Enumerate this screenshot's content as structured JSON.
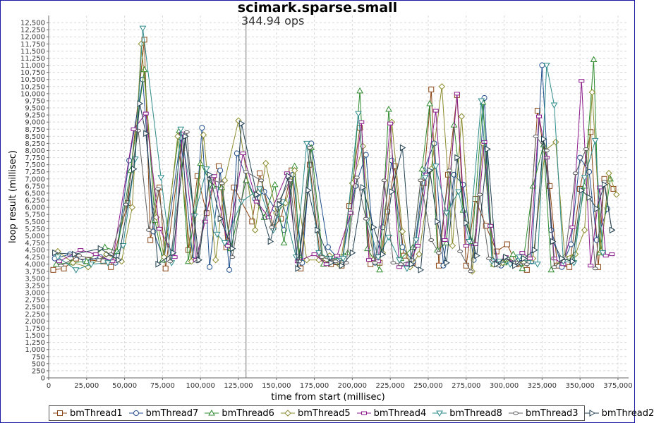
{
  "chart_data": {
    "type": "line",
    "title": "scimark.sparse.small",
    "annotation": "344.94 ops",
    "marker_x": 130000,
    "xlabel": "time from start (millisec)",
    "ylabel": "loop result (millisec)",
    "xlim": [
      0,
      382000
    ],
    "ylim": [
      0,
      12750
    ],
    "x_ticks": [
      0,
      25000,
      50000,
      75000,
      100000,
      125000,
      150000,
      175000,
      200000,
      225000,
      250000,
      275000,
      300000,
      325000,
      350000,
      375000
    ],
    "x_tick_labels": [
      "0",
      "25,000",
      "50,000",
      "75,000",
      "100,000",
      "125,000",
      "150,000",
      "175,000",
      "200,000",
      "225,000",
      "250,000",
      "275,000",
      "300,000",
      "325,000",
      "350,000",
      "375,000"
    ],
    "y_ticks": [
      0,
      250,
      500,
      750,
      1000,
      1250,
      1500,
      1750,
      2000,
      2250,
      2500,
      2750,
      3000,
      3250,
      3500,
      3750,
      4000,
      4250,
      4500,
      4750,
      5000,
      5250,
      5500,
      5750,
      6000,
      6250,
      6500,
      6750,
      7000,
      7250,
      7500,
      7750,
      8000,
      8250,
      8500,
      8750,
      9000,
      9250,
      9500,
      9750,
      10000,
      10250,
      10500,
      10750,
      11000,
      11250,
      11500,
      11750,
      12000,
      12250,
      12500
    ],
    "y_tick_labels": [
      "0",
      "250",
      "500",
      "750",
      "1,000",
      "1,250",
      "1,500",
      "1,750",
      "2,000",
      "2,250",
      "2,500",
      "2,750",
      "3,000",
      "3,250",
      "3,500",
      "3,750",
      "4,000",
      "4,250",
      "4,500",
      "4,750",
      "5,000",
      "5,250",
      "5,500",
      "5,750",
      "6,000",
      "6,250",
      "6,500",
      "6,750",
      "7,000",
      "7,250",
      "7,500",
      "7,750",
      "8,000",
      "8,250",
      "8,500",
      "8,750",
      "9,000",
      "9,250",
      "9,500",
      "9,750",
      "10,000",
      "10,250",
      "10,500",
      "10,750",
      "11,000",
      "11,250",
      "11,500",
      "11,750",
      "12,000",
      "12,250",
      "12,500"
    ],
    "grid": true,
    "legend_position": "bottom",
    "series": [
      {
        "name": "bmThread1",
        "color": "#8b4513",
        "marker": "square",
        "x": [
          3000,
          10000,
          18000,
          26000,
          36000,
          41000,
          52000,
          63000,
          67000,
          73000,
          77000,
          88000,
          92000,
          98000,
          104000,
          112000,
          117000,
          122000,
          134000,
          139000,
          148000,
          153000,
          160000,
          166000,
          172000,
          179000,
          186000,
          193000,
          198000,
          205000,
          212000,
          218000,
          223000,
          228000,
          234000,
          240000,
          247000,
          252000,
          257000,
          263000,
          269000,
          275000,
          281000,
          288000,
          295000,
          302000,
          308000,
          315000,
          322000,
          330000,
          335000,
          343000,
          350000,
          357000,
          362000,
          366000,
          372000
        ],
        "y": [
          3800,
          3850,
          4200,
          4150,
          4100,
          3900,
          6150,
          11900,
          4850,
          6700,
          3850,
          8550,
          4500,
          7100,
          5800,
          7450,
          4600,
          6700,
          5500,
          7200,
          5300,
          5600,
          7300,
          3850,
          7500,
          4200,
          4000,
          3950,
          6050,
          8800,
          4000,
          4050,
          5850,
          7450,
          4300,
          4050,
          6850,
          10150,
          3950,
          7150,
          9950,
          3950,
          6300,
          5350,
          4450,
          4700,
          4000,
          3800,
          9400,
          6750,
          3950,
          3900,
          6650,
          8650,
          3900,
          7000,
          6650
        ]
      },
      {
        "name": "bmThread7",
        "color": "#1f4e8c",
        "marker": "circle",
        "x": [
          4000,
          14000,
          24000,
          34000,
          44000,
          53000,
          62000,
          69000,
          76000,
          87000,
          95000,
          101000,
          106000,
          113000,
          119000,
          124000,
          136000,
          142000,
          149000,
          155000,
          161000,
          167000,
          173000,
          184000,
          193000,
          202000,
          209000,
          215000,
          220000,
          226000,
          233000,
          240000,
          247000,
          254000,
          260000,
          267000,
          273000,
          280000,
          287000,
          292000,
          298000,
          305000,
          311000,
          318000,
          325000,
          331000,
          338000,
          344000,
          350000,
          356000,
          361000,
          368000
        ],
        "y": [
          4200,
          4350,
          4100,
          4250,
          4050,
          7650,
          10500,
          5150,
          4150,
          8450,
          4150,
          8800,
          3900,
          7300,
          3800,
          7900,
          6300,
          6550,
          5950,
          5200,
          7150,
          4050,
          8250,
          4600,
          4050,
          6750,
          7850,
          4050,
          5300,
          7650,
          4600,
          4100,
          7300,
          8250,
          3950,
          7150,
          6800,
          4150,
          9850,
          4150,
          3950,
          4050,
          4050,
          4100,
          11000,
          5200,
          3900,
          4700,
          7750,
          7250,
          4850,
          5950
        ]
      },
      {
        "name": "bmThread6",
        "color": "#2e8b2e",
        "marker": "triangle-up",
        "x": [
          5000,
          15000,
          25000,
          37000,
          45000,
          54000,
          63000,
          70000,
          75000,
          86000,
          92000,
          100000,
          108000,
          114000,
          120000,
          130000,
          142000,
          149000,
          155000,
          162000,
          165000,
          173000,
          181000,
          188000,
          197000,
          205000,
          210000,
          218000,
          224000,
          232000,
          240000,
          246000,
          251000,
          256000,
          262000,
          267000,
          273000,
          279000,
          286000,
          293000,
          300000,
          306000,
          312000,
          319000,
          326000,
          331000,
          338000,
          345000,
          353000,
          359000,
          363000,
          370000
        ],
        "y": [
          4000,
          4050,
          4100,
          4600,
          4450,
          7300,
          10850,
          5550,
          4150,
          8700,
          4100,
          7550,
          6750,
          6700,
          4550,
          6950,
          5650,
          6800,
          4750,
          7450,
          4300,
          8100,
          4000,
          4250,
          4400,
          10100,
          4550,
          3800,
          9450,
          4200,
          4600,
          7350,
          9650,
          4500,
          4750,
          8900,
          5900,
          4800,
          9700,
          4000,
          4050,
          4350,
          3850,
          6750,
          8200,
          3800,
          4150,
          4200,
          6750,
          11200,
          4400,
          7000
        ]
      },
      {
        "name": "bmThread5",
        "color": "#8b8b2e",
        "marker": "diamond",
        "x": [
          6000,
          16000,
          26000,
          38000,
          48000,
          55000,
          61000,
          71000,
          76000,
          85000,
          94000,
          102000,
          110000,
          116000,
          125000,
          136000,
          143000,
          150000,
          156000,
          162000,
          170000,
          178000,
          185000,
          192000,
          200000,
          207000,
          214000,
          220000,
          226000,
          233000,
          238000,
          244000,
          252000,
          259000,
          266000,
          272000,
          279000,
          286000,
          293000,
          299000,
          304000,
          313000,
          319000,
          327000,
          334000,
          340000,
          347000,
          353000,
          358000,
          364000,
          369000,
          374000
        ],
        "y": [
          4450,
          4050,
          3900,
          4350,
          4100,
          6000,
          11750,
          5650,
          4250,
          8500,
          4100,
          8550,
          4150,
          6950,
          9050,
          5200,
          7550,
          5800,
          6150,
          7300,
          4150,
          4150,
          4300,
          3950,
          6850,
          8150,
          4150,
          4400,
          9000,
          5150,
          3900,
          4350,
          7350,
          10250,
          4650,
          9200,
          3750,
          8250,
          4000,
          4050,
          4100,
          4050,
          4200,
          8000,
          8300,
          4250,
          4350,
          5200,
          10050,
          4450,
          7200,
          6450
        ]
      },
      {
        "name": "bmThread4",
        "color": "#8b1a8b",
        "marker": "square-small",
        "x": [
          7000,
          21000,
          31000,
          42000,
          56000,
          64000,
          73000,
          83000,
          88000,
          97000,
          103000,
          109000,
          118000,
          128000,
          137000,
          145000,
          157000,
          164000,
          175000,
          183000,
          190000,
          199000,
          206000,
          211000,
          217000,
          225000,
          231000,
          237000,
          243000,
          249000,
          255000,
          261000,
          269000,
          275000,
          281000,
          287000,
          291000,
          296000,
          301000,
          306000,
          312000,
          317000,
          323000,
          328000,
          333000,
          339000,
          345000,
          351000,
          357000,
          363000,
          367000,
          371000
        ],
        "y": [
          4100,
          4500,
          4350,
          4100,
          8750,
          9300,
          5250,
          4250,
          8600,
          4150,
          5500,
          7100,
          4650,
          7900,
          6200,
          5650,
          7200,
          4100,
          4350,
          4000,
          4300,
          5800,
          9000,
          4150,
          4100,
          8950,
          3900,
          4000,
          4650,
          7150,
          9400,
          4850,
          10000,
          4650,
          4700,
          8300,
          5350,
          4100,
          4250,
          4050,
          4400,
          4200,
          9200,
          7750,
          4200,
          4000,
          5300,
          10450,
          3950,
          6700,
          4300,
          4350
        ]
      },
      {
        "name": "bmThread8",
        "color": "#2e8b8b",
        "marker": "triangle-down",
        "x": [
          6000,
          18000,
          28000,
          39000,
          49000,
          57000,
          62000,
          74000,
          81000,
          87000,
          96000,
          104000,
          111000,
          116000,
          127000,
          139000,
          148000,
          154000,
          163000,
          170000,
          178000,
          185000,
          194000,
          204000,
          210000,
          217000,
          224000,
          231000,
          236000,
          242000,
          248000,
          255000,
          262000,
          270000,
          277000,
          285000,
          292000,
          297000,
          304000,
          310000,
          316000,
          322000,
          328000,
          333000,
          339000,
          346000,
          353000,
          360000,
          365000
        ],
        "y": [
          4250,
          3800,
          4000,
          4050,
          4650,
          7700,
          12300,
          7050,
          4050,
          8750,
          5700,
          7350,
          5050,
          4750,
          6200,
          6650,
          5200,
          6200,
          4250,
          8250,
          4400,
          4200,
          4200,
          9300,
          5550,
          4250,
          4950,
          4150,
          3850,
          4850,
          7050,
          7450,
          5800,
          6550,
          4800,
          9750,
          4100,
          4100,
          4000,
          4250,
          4050,
          4000,
          11000,
          9600,
          4100,
          4050,
          7050,
          8350,
          4400
        ]
      },
      {
        "name": "bmThread3",
        "color": "#606060",
        "marker": "circle-small",
        "x": [
          8000,
          20000,
          33000,
          41000,
          51000,
          59000,
          66000,
          72000,
          80000,
          91000,
          98000,
          106000,
          114000,
          121000,
          130000,
          140000,
          147000,
          152000,
          159000,
          165000,
          172000,
          180000,
          189000,
          196000,
          203000,
          209000,
          215000,
          221000,
          227000,
          232000,
          239000,
          245000,
          252000,
          257000,
          264000,
          271000,
          278000,
          284000,
          290000,
          296000,
          302000,
          309000,
          315000,
          321000,
          328000,
          333000,
          340000,
          347000,
          354000,
          360000,
          366000,
          371000
        ],
        "y": [
          3950,
          4300,
          4150,
          4350,
          6100,
          8700,
          5200,
          6650,
          4100,
          8650,
          4100,
          7000,
          6850,
          4250,
          7250,
          6950,
          5300,
          6250,
          6950,
          4100,
          8100,
          4250,
          4100,
          4050,
          7050,
          5600,
          4050,
          6950,
          4050,
          4000,
          4150,
          6950,
          4850,
          4400,
          7300,
          4450,
          3750,
          6450,
          4200,
          3950,
          4200,
          4050,
          4000,
          8500,
          8000,
          3900,
          4200,
          7200,
          8050,
          3850,
          6900,
          5200
        ]
      },
      {
        "name": "bmThread2",
        "color": "#204050",
        "marker": "triangle-right",
        "x": [
          4000,
          17000,
          34000,
          46000,
          56000,
          60000,
          64000,
          72000,
          82000,
          90000,
          99000,
          106000,
          113000,
          121000,
          127000,
          137000,
          146000,
          152000,
          158000,
          164000,
          171000,
          177000,
          186000,
          193000,
          200000,
          207000,
          214000,
          220000,
          226000,
          233000,
          239000,
          245000,
          251000,
          256000,
          262000,
          269000,
          275000,
          282000,
          289000,
          295000,
          301000,
          307000,
          313000,
          320000,
          326000,
          332000,
          338000,
          345000,
          351000,
          356000,
          361000,
          366000,
          371000
        ],
        "y": [
          4400,
          4350,
          4550,
          4150,
          7350,
          9650,
          8600,
          4000,
          4400,
          8500,
          4150,
          7150,
          5600,
          4550,
          8950,
          6450,
          4800,
          6100,
          7100,
          3850,
          6600,
          5200,
          4050,
          3950,
          4400,
          6700,
          5300,
          4350,
          6550,
          8100,
          4000,
          3800,
          7300,
          5500,
          4050,
          7750,
          5450,
          4300,
          8050,
          4000,
          4250,
          3950,
          4200,
          4500,
          8400,
          4800,
          4200,
          4100,
          6600,
          6350,
          5950,
          6800,
          5200
        ]
      }
    ]
  }
}
